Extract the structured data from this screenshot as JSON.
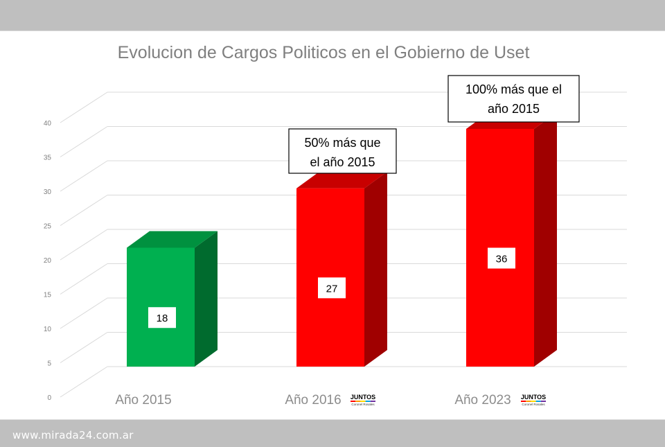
{
  "chart_data": {
    "type": "bar",
    "title": "Evolucion de Cargos Politicos en el Gobierno de Uset",
    "categories": [
      "Año 2015",
      "Año 2016",
      "Año 2023"
    ],
    "values": [
      18,
      27,
      36
    ],
    "ylim": [
      0,
      40
    ],
    "yticks": [
      0,
      5,
      10,
      15,
      20,
      25,
      30,
      35,
      40
    ],
    "grid": true,
    "bar_colors": [
      "#00b050",
      "#ff0000",
      "#ff0000"
    ],
    "annotations": [
      {
        "category": "Año 2016",
        "lines": [
          "50% más que",
          "el año 2015"
        ]
      },
      {
        "category": "Año 2023",
        "lines": [
          "100% más que el",
          "año 2015"
        ]
      }
    ]
  },
  "badges": [
    {
      "category": "Año 2016",
      "title": "JUNTOS",
      "subtitle": "Coronel Rosales"
    },
    {
      "category": "Año 2023",
      "title": "JUNTOS",
      "subtitle": "Coronel Rosales"
    }
  ],
  "colors": {
    "green_front": "#00b050",
    "green_top": "#00913f",
    "green_side": "#006b2e",
    "red_front": "#ff0000",
    "red_top": "#c80000",
    "red_side": "#a00000",
    "grid": "#d9d9d9",
    "background": "#bfbfbf"
  },
  "watermark": "www.mirada24.com.ar"
}
